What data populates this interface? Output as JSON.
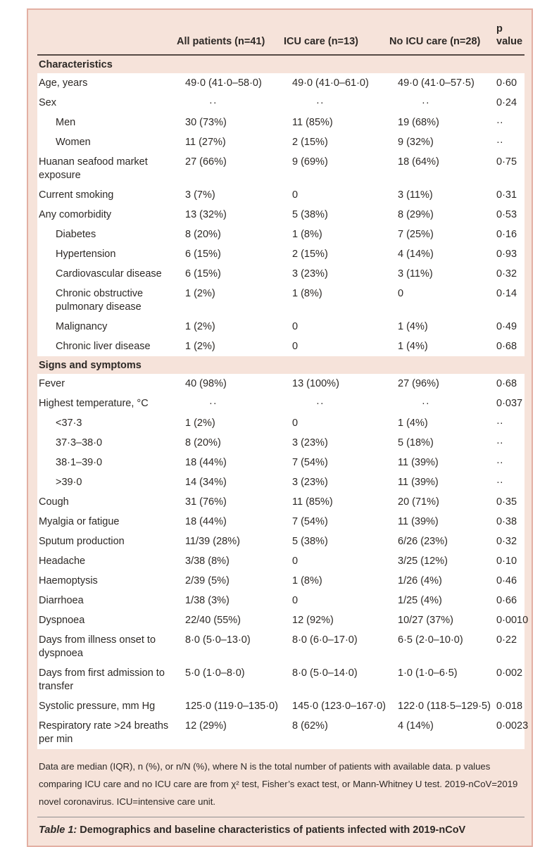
{
  "colors": {
    "panel_background": "#f6e3da",
    "panel_border": "#e3afa3",
    "row_background": "#ffffff",
    "header_rule": "#564a45",
    "text": "#2d2926",
    "caption_rule": "#8f8f8f"
  },
  "table": {
    "columns": [
      "",
      "All patients (n=41)",
      "ICU care (n=13)",
      "No ICU care (n=28)",
      "p value"
    ],
    "sections": [
      {
        "title": "Characteristics",
        "rows": [
          {
            "label": "Age, years",
            "indent": false,
            "values": [
              "49·0 (41·0–58·0)",
              "49·0 (41·0–61·0)",
              "49·0 (41·0–57·5)",
              "0·60"
            ]
          },
          {
            "label": "Sex",
            "indent": false,
            "values": [
              "··",
              "··",
              "··",
              "0·24"
            ]
          },
          {
            "label": "Men",
            "indent": true,
            "values": [
              "30 (73%)",
              "11 (85%)",
              "19 (68%)",
              "··"
            ]
          },
          {
            "label": "Women",
            "indent": true,
            "values": [
              "11 (27%)",
              "2 (15%)",
              "9 (32%)",
              "··"
            ]
          },
          {
            "label": "Huanan seafood market exposure",
            "indent": false,
            "values": [
              "27 (66%)",
              "9 (69%)",
              "18 (64%)",
              "0·75"
            ]
          },
          {
            "label": "Current smoking",
            "indent": false,
            "values": [
              "3 (7%)",
              "0",
              "3 (11%)",
              "0·31"
            ]
          },
          {
            "label": "Any comorbidity",
            "indent": false,
            "values": [
              "13 (32%)",
              "5 (38%)",
              "8 (29%)",
              "0·53"
            ]
          },
          {
            "label": "Diabetes",
            "indent": true,
            "values": [
              "8 (20%)",
              "1 (8%)",
              "7 (25%)",
              "0·16"
            ]
          },
          {
            "label": "Hypertension",
            "indent": true,
            "values": [
              "6 (15%)",
              "2 (15%)",
              "4 (14%)",
              "0·93"
            ]
          },
          {
            "label": "Cardiovascular disease",
            "indent": true,
            "values": [
              "6 (15%)",
              "3 (23%)",
              "3 (11%)",
              "0·32"
            ]
          },
          {
            "label": "Chronic obstructive pulmonary disease",
            "indent": true,
            "values": [
              "1 (2%)",
              "1 (8%)",
              "0",
              "0·14"
            ]
          },
          {
            "label": "Malignancy",
            "indent": true,
            "values": [
              "1 (2%)",
              "0",
              "1 (4%)",
              "0·49"
            ]
          },
          {
            "label": "Chronic liver disease",
            "indent": true,
            "values": [
              "1 (2%)",
              "0",
              "1 (4%)",
              "0·68"
            ]
          }
        ]
      },
      {
        "title": "Signs and symptoms",
        "rows": [
          {
            "label": "Fever",
            "indent": false,
            "values": [
              "40 (98%)",
              "13 (100%)",
              "27 (96%)",
              "0·68"
            ]
          },
          {
            "label": "Highest temperature, °C",
            "indent": false,
            "values": [
              "··",
              "··",
              "··",
              "0·037"
            ]
          },
          {
            "label": "<37·3",
            "indent": true,
            "values": [
              "1 (2%)",
              "0",
              "1 (4%)",
              "··"
            ]
          },
          {
            "label": "37·3–38·0",
            "indent": true,
            "values": [
              "8 (20%)",
              "3 (23%)",
              "5 (18%)",
              "··"
            ]
          },
          {
            "label": "38·1–39·0",
            "indent": true,
            "values": [
              "18 (44%)",
              "7 (54%)",
              "11 (39%)",
              "··"
            ]
          },
          {
            "label": ">39·0",
            "indent": true,
            "values": [
              "14 (34%)",
              "3 (23%)",
              "11 (39%)",
              "··"
            ]
          },
          {
            "label": "Cough",
            "indent": false,
            "values": [
              "31 (76%)",
              "11 (85%)",
              "20 (71%)",
              "0·35"
            ]
          },
          {
            "label": "Myalgia or fatigue",
            "indent": false,
            "values": [
              "18 (44%)",
              "7 (54%)",
              "11 (39%)",
              "0·38"
            ]
          },
          {
            "label": "Sputum production",
            "indent": false,
            "values": [
              "11/39 (28%)",
              "5 (38%)",
              "6/26 (23%)",
              "0·32"
            ]
          },
          {
            "label": "Headache",
            "indent": false,
            "values": [
              "3/38 (8%)",
              "0",
              "3/25 (12%)",
              "0·10"
            ]
          },
          {
            "label": "Haemoptysis",
            "indent": false,
            "values": [
              "2/39 (5%)",
              "1 (8%)",
              "1/26 (4%)",
              "0·46"
            ]
          },
          {
            "label": "Diarrhoea",
            "indent": false,
            "values": [
              "1/38 (3%)",
              "0",
              "1/25 (4%)",
              "0·66"
            ]
          },
          {
            "label": "Dyspnoea",
            "indent": false,
            "values": [
              "22/40 (55%)",
              "12 (92%)",
              "10/27 (37%)",
              "0·0010"
            ]
          },
          {
            "label": "Days from illness onset to dyspnoea",
            "indent": false,
            "values": [
              "8·0 (5·0–13·0)",
              "8·0 (6·0–17·0)",
              "6·5 (2·0–10·0)",
              "0·22"
            ]
          },
          {
            "label": "Days from first admission to transfer",
            "indent": false,
            "values": [
              "5·0 (1·0–8·0)",
              "8·0 (5·0–14·0)",
              "1·0 (1·0–6·5)",
              "0·002"
            ]
          },
          {
            "label": "Systolic pressure, mm Hg",
            "indent": false,
            "values": [
              "125·0 (119·0–135·0)",
              "145·0 (123·0–167·0)",
              "122·0 (118·5–129·5)",
              "0·018"
            ]
          },
          {
            "label": "Respiratory rate >24 breaths per min",
            "indent": false,
            "values": [
              "12 (29%)",
              "8 (62%)",
              "4 (14%)",
              "0·0023"
            ]
          }
        ]
      }
    ],
    "footnote": "Data are median (IQR), n (%), or n/N (%), where N is the total number of patients with available data. p values comparing ICU care and no ICU care are from χ² test, Fisher’s exact test, or Mann-Whitney U test. 2019-nCoV=2019 novel coronavirus. ICU=intensive care unit.",
    "caption_prefix": "Table 1:",
    "caption_text": "Demographics and baseline characteristics of patients infected with 2019-nCoV"
  }
}
